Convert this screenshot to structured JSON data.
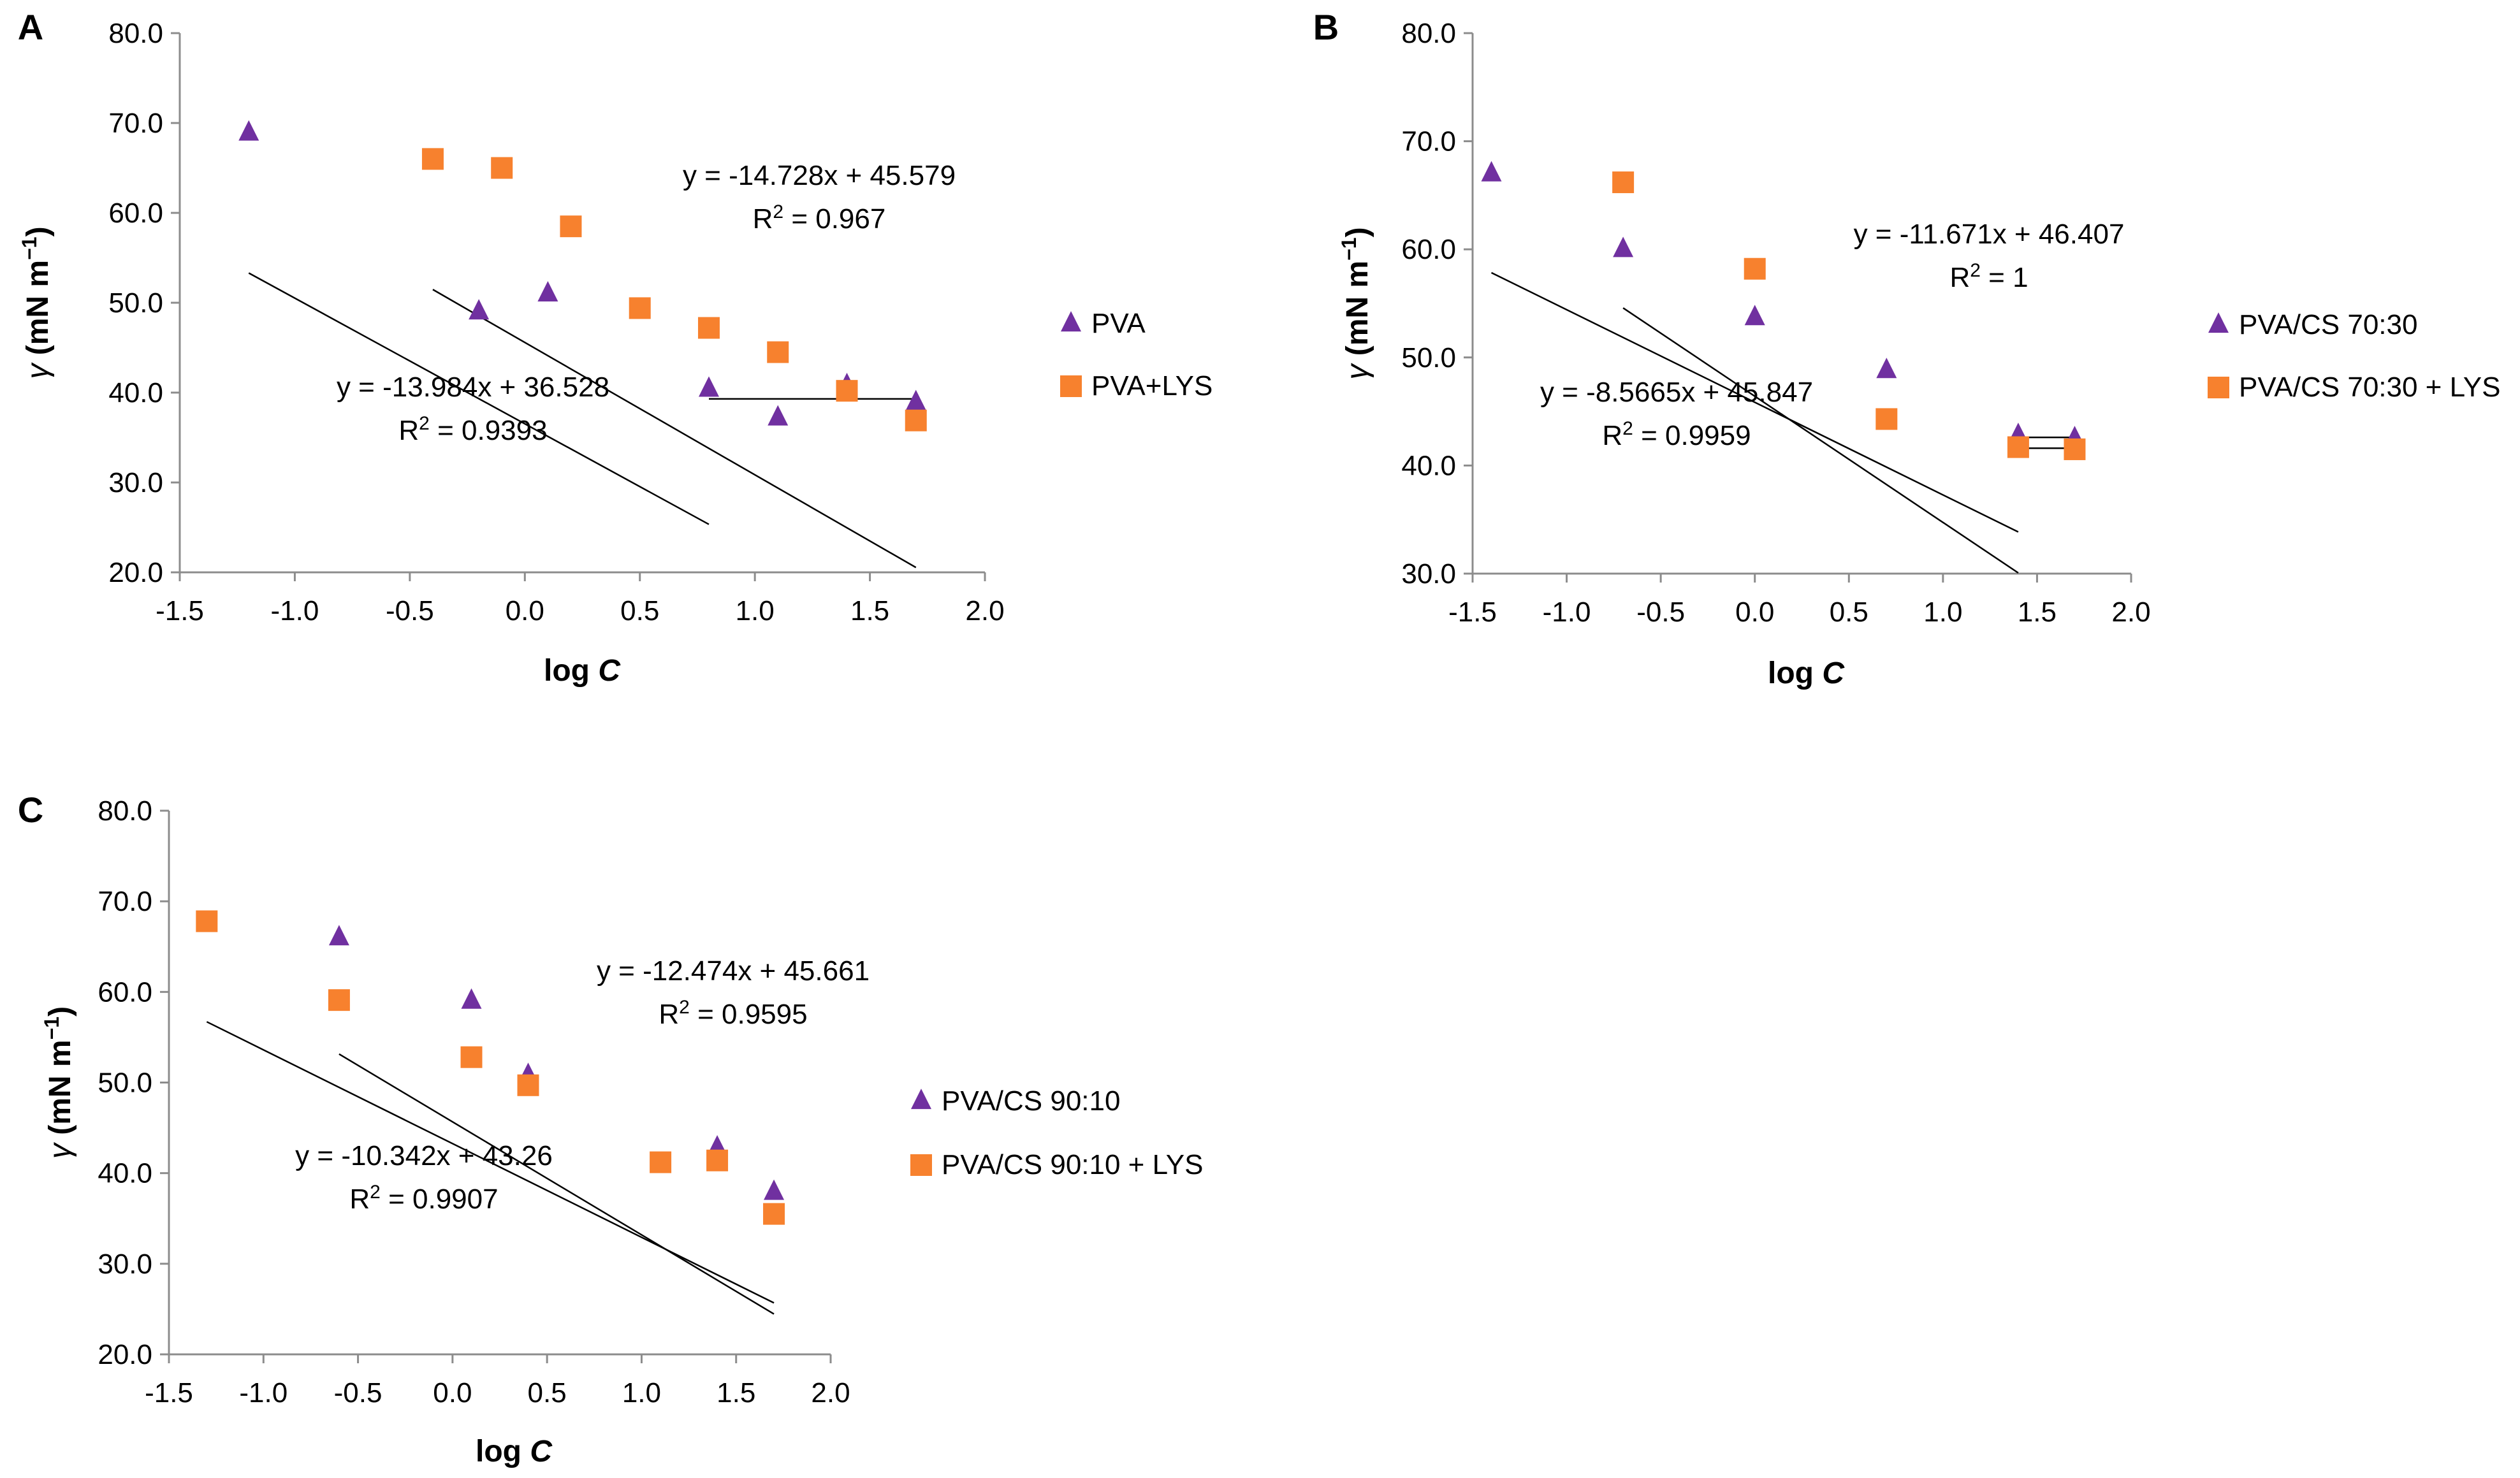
{
  "figure": {
    "panels": [
      "A",
      "B",
      "C"
    ]
  },
  "colors": {
    "triangle": "#7030a0",
    "square": "#f7812e",
    "axis": "#8c8c8c",
    "fit": "#000000"
  },
  "chart_data": [
    {
      "panel": "A",
      "type": "scatter",
      "xlabel": "log C",
      "ylabel": "γ (mN m−1)",
      "xlim": [
        -1.5,
        2.0
      ],
      "ylim": [
        20.0,
        80.0
      ],
      "xticks": [
        "-1.5",
        "-1.0",
        "-0.5",
        "0.0",
        "0.5",
        "1.0",
        "1.5",
        "2.0"
      ],
      "yticks": [
        "20.0",
        "30.0",
        "40.0",
        "50.0",
        "60.0",
        "70.0",
        "80.0"
      ],
      "series": [
        {
          "name": "PVA",
          "marker": "triangle",
          "x": [
            -1.2,
            -0.2,
            0.1,
            0.8,
            1.1,
            1.4,
            1.7
          ],
          "y": [
            68.9,
            49.0,
            51.0,
            40.4,
            37.2,
            40.8,
            38.9
          ]
        },
        {
          "name": "PVA+LYS",
          "marker": "square",
          "x": [
            -0.4,
            -0.1,
            0.2,
            0.5,
            0.8,
            1.1,
            1.4,
            1.7
          ],
          "y": [
            66.0,
            65.0,
            58.5,
            49.4,
            47.2,
            44.5,
            40.2,
            36.9
          ]
        }
      ],
      "fits": [
        {
          "series": "PVA",
          "slope": -13.984,
          "intercept": 36.528,
          "x_range": [
            -1.2,
            0.8
          ]
        },
        {
          "series": "PVA",
          "slope": 0,
          "intercept": 39.3,
          "x_range": [
            0.8,
            1.7
          ]
        },
        {
          "series": "PVA+LYS",
          "slope": -14.728,
          "intercept": 45.579,
          "x_range": [
            -0.4,
            1.7
          ]
        }
      ],
      "annotations": [
        {
          "equation": "y = -14.728x + 45.579",
          "r2_label": "R",
          "r2_value": " = 0.967"
        },
        {
          "equation": "y = -13.984x + 36.528",
          "r2_label": "R",
          "r2_value": " = 0.9393"
        }
      ]
    },
    {
      "panel": "B",
      "type": "scatter",
      "xlabel": "log C",
      "ylabel": "γ (mN m−1)",
      "xlim": [
        -1.5,
        2.0
      ],
      "ylim": [
        30.0,
        80.0
      ],
      "xticks": [
        "-1.5",
        "-1.0",
        "-0.5",
        "0.0",
        "0.5",
        "1.0",
        "1.5",
        "2.0"
      ],
      "yticks": [
        "30.0",
        "40.0",
        "50.0",
        "60.0",
        "70.0",
        "80.0"
      ],
      "series": [
        {
          "name": "PVA/CS 70:30",
          "marker": "triangle",
          "x": [
            -1.4,
            -0.7,
            0.0,
            0.7,
            1.4,
            1.7
          ],
          "y": [
            67.0,
            60.0,
            53.7,
            48.8,
            42.8,
            42.5
          ]
        },
        {
          "name": "PVA/CS 70:30 + LYS",
          "marker": "square",
          "x": [
            -0.7,
            0.0,
            0.7,
            1.4,
            1.7
          ],
          "y": [
            66.2,
            58.2,
            44.3,
            41.7,
            41.5
          ]
        }
      ],
      "fits": [
        {
          "series": "PVA/CS 70:30",
          "slope": -8.5665,
          "intercept": 45.847,
          "x_range": [
            -1.4,
            1.4
          ]
        },
        {
          "series": "PVA/CS 70:30",
          "slope": 0,
          "intercept": 42.6,
          "x_range": [
            1.4,
            1.7
          ]
        },
        {
          "series": "PVA/CS 70:30 + LYS",
          "slope": -11.671,
          "intercept": 46.407,
          "x_range": [
            -0.7,
            1.4
          ]
        },
        {
          "series": "PVA/CS 70:30 + LYS",
          "slope": 0,
          "intercept": 41.6,
          "x_range": [
            1.4,
            1.7
          ]
        }
      ],
      "annotations": [
        {
          "equation": "y = -11.671x + 46.407",
          "r2_label": "R",
          "r2_value": " = 1"
        },
        {
          "equation": "y = -8.5665x + 45.847",
          "r2_label": "R",
          "r2_value": " = 0.9959"
        }
      ]
    },
    {
      "panel": "C",
      "type": "scatter",
      "xlabel": "log C",
      "ylabel": "γ (mN m−1)",
      "xlim": [
        -1.5,
        2.0
      ],
      "ylim": [
        20.0,
        80.0
      ],
      "xticks": [
        "-1.5",
        "-1.0",
        "-0.5",
        "0.0",
        "0.5",
        "1.0",
        "1.5",
        "2.0"
      ],
      "yticks": [
        "20.0",
        "30.0",
        "40.0",
        "50.0",
        "60.0",
        "70.0",
        "80.0"
      ],
      "series": [
        {
          "name": "PVA/CS 90:10",
          "marker": "triangle",
          "x": [
            -0.6,
            0.1,
            0.4,
            1.4,
            1.7
          ],
          "y": [
            66.0,
            59.0,
            50.8,
            42.8,
            37.9
          ]
        },
        {
          "name": "PVA/CS 90:10 + LYS",
          "marker": "square",
          "x": [
            -1.3,
            -0.6,
            0.1,
            0.4,
            1.1,
            1.4,
            1.7
          ],
          "y": [
            67.8,
            59.1,
            52.8,
            49.7,
            41.2,
            41.4,
            35.5
          ]
        }
      ],
      "fits": [
        {
          "series": "PVA/CS 90:10",
          "slope": -12.474,
          "intercept": 45.661,
          "x_range": [
            -0.6,
            1.7
          ]
        },
        {
          "series": "PVA/CS 90:10 + LYS",
          "slope": -10.342,
          "intercept": 43.26,
          "x_range": [
            -1.3,
            1.7
          ]
        }
      ],
      "annotations": [
        {
          "equation": "y = -12.474x + 45.661",
          "r2_label": "R",
          "r2_value": " = 0.9595"
        },
        {
          "equation": "y = -10.342x + 43.26",
          "r2_label": "R",
          "r2_value": " = 0.9907"
        }
      ]
    }
  ]
}
